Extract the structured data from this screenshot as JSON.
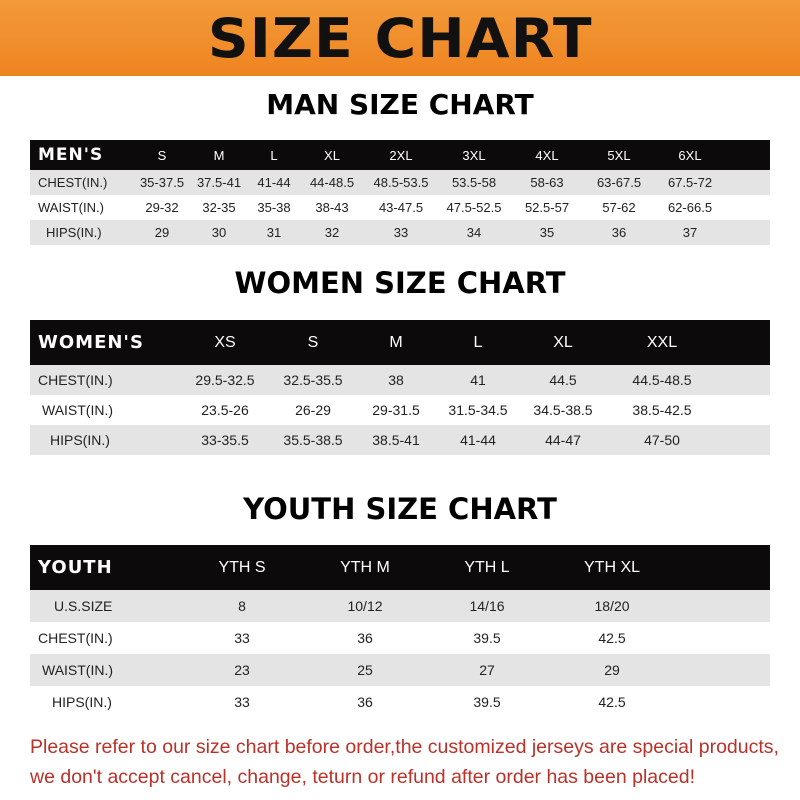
{
  "banner": {
    "title": "SIZE CHART",
    "color": "#ee8420"
  },
  "men": {
    "title": "MAN SIZE CHART",
    "header": "MEN'S",
    "sizes": [
      "S",
      "M",
      "L",
      "XL",
      "2XL",
      "3XL",
      "4XL",
      "5XL",
      "6XL"
    ],
    "rows": [
      {
        "label": "CHEST(IN.)",
        "values": [
          "35-37.5",
          "37.5-41",
          "41-44",
          "44-48.5",
          "48.5-53.5",
          "53.5-58",
          "58-63",
          "63-67.5",
          "67.5-72"
        ]
      },
      {
        "label": "WAIST(IN.)",
        "values": [
          "29-32",
          "32-35",
          "35-38",
          "38-43",
          "43-47.5",
          "47.5-52.5",
          "52.5-57",
          "57-62",
          "62-66.5"
        ]
      },
      {
        "label": "HIPS(IN.)",
        "values": [
          "29",
          "30",
          "31",
          "32",
          "33",
          "34",
          "35",
          "36",
          "37"
        ]
      }
    ]
  },
  "women": {
    "title": "WOMEN SIZE CHART",
    "header": "WOMEN'S",
    "sizes": [
      "XS",
      "S",
      "M",
      "L",
      "XL",
      "XXL"
    ],
    "rows": [
      {
        "label": "CHEST(IN.)",
        "values": [
          "29.5-32.5",
          "32.5-35.5",
          "38",
          "41",
          "44.5",
          "44.5-48.5"
        ]
      },
      {
        "label": "WAIST(IN.)",
        "values": [
          "23.5-26",
          "26-29",
          "29-31.5",
          "31.5-34.5",
          "34.5-38.5",
          "38.5-42.5"
        ]
      },
      {
        "label": "HIPS(IN.)",
        "values": [
          "33-35.5",
          "35.5-38.5",
          "38.5-41",
          "41-44",
          "44-47",
          "47-50"
        ]
      }
    ]
  },
  "youth": {
    "title": "YOUTH SIZE CHART",
    "header": "YOUTH",
    "sizes": [
      "YTH S",
      "YTH M",
      "YTH L",
      "YTH XL"
    ],
    "rows": [
      {
        "label": "U.S.SIZE",
        "values": [
          "8",
          "10/12",
          "14/16",
          "18/20"
        ]
      },
      {
        "label": "CHEST(IN.)",
        "values": [
          "33",
          "36",
          "39.5",
          "42.5"
        ]
      },
      {
        "label": "WAIST(IN.)",
        "values": [
          "23",
          "25",
          "27",
          "29"
        ]
      },
      {
        "label": "HIPS(IN.)",
        "values": [
          "33",
          "36",
          "39.5",
          "42.5"
        ]
      }
    ]
  },
  "notice": {
    "line1": "Please refer to our size chart before order,the customized jerseys are special products,",
    "line2": "we don't accept cancel, change, teturn or refund after order has been placed!",
    "color": "#b8322a"
  }
}
